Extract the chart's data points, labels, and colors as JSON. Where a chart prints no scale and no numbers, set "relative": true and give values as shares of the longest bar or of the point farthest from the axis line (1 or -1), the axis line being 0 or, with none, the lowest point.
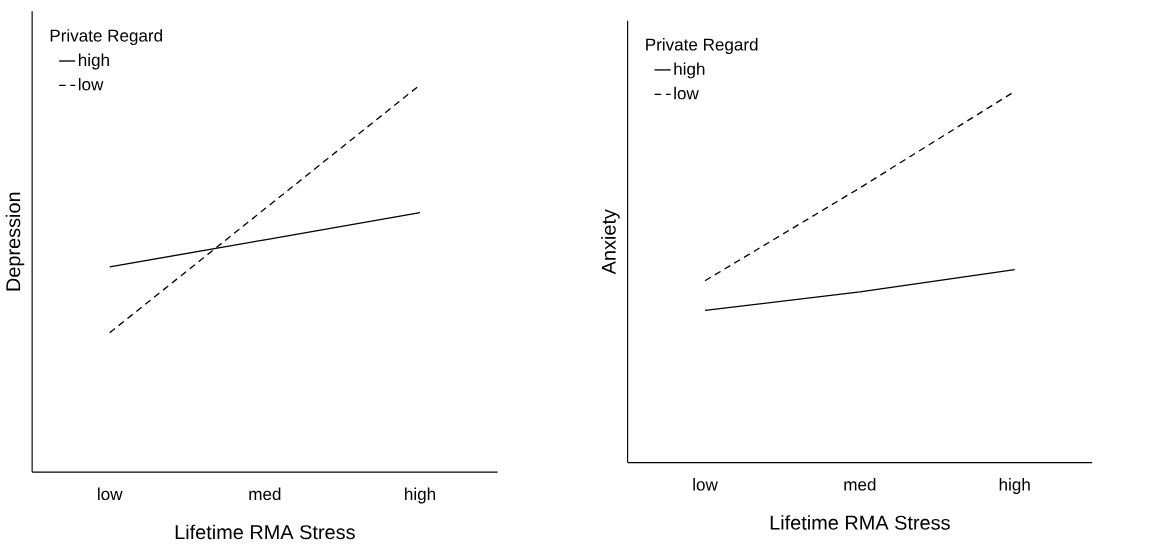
{
  "chart_data": [
    {
      "type": "line",
      "relative": true,
      "xlabel": "Lifetime RMA Stress",
      "ylabel": "Depression",
      "legend_title": "Private Regard",
      "legend": "top left",
      "marker": "none",
      "categories": [
        "low",
        "med",
        "high"
      ],
      "series": [
        {
          "name": "high",
          "color": "#000000",
          "line_style": "solid",
          "values": [
            0.53,
            0.6,
            0.67
          ]
        },
        {
          "name": "low",
          "color": "#000000",
          "line_style": "dashed",
          "values": [
            0.36,
            0.68,
            1.0
          ]
        }
      ]
    },
    {
      "type": "line",
      "relative": true,
      "xlabel": "Lifetime RMA Stress",
      "ylabel": "Anxiety",
      "legend_title": "Private Regard",
      "legend": "top left",
      "marker": "none",
      "categories": [
        "low",
        "med",
        "high"
      ],
      "series": [
        {
          "name": "high",
          "color": "#000000",
          "line_style": "solid",
          "values": [
            0.41,
            0.46,
            0.52
          ]
        },
        {
          "name": "low",
          "color": "#000000",
          "line_style": "dashed",
          "values": [
            0.49,
            0.74,
            1.0
          ]
        }
      ]
    }
  ]
}
